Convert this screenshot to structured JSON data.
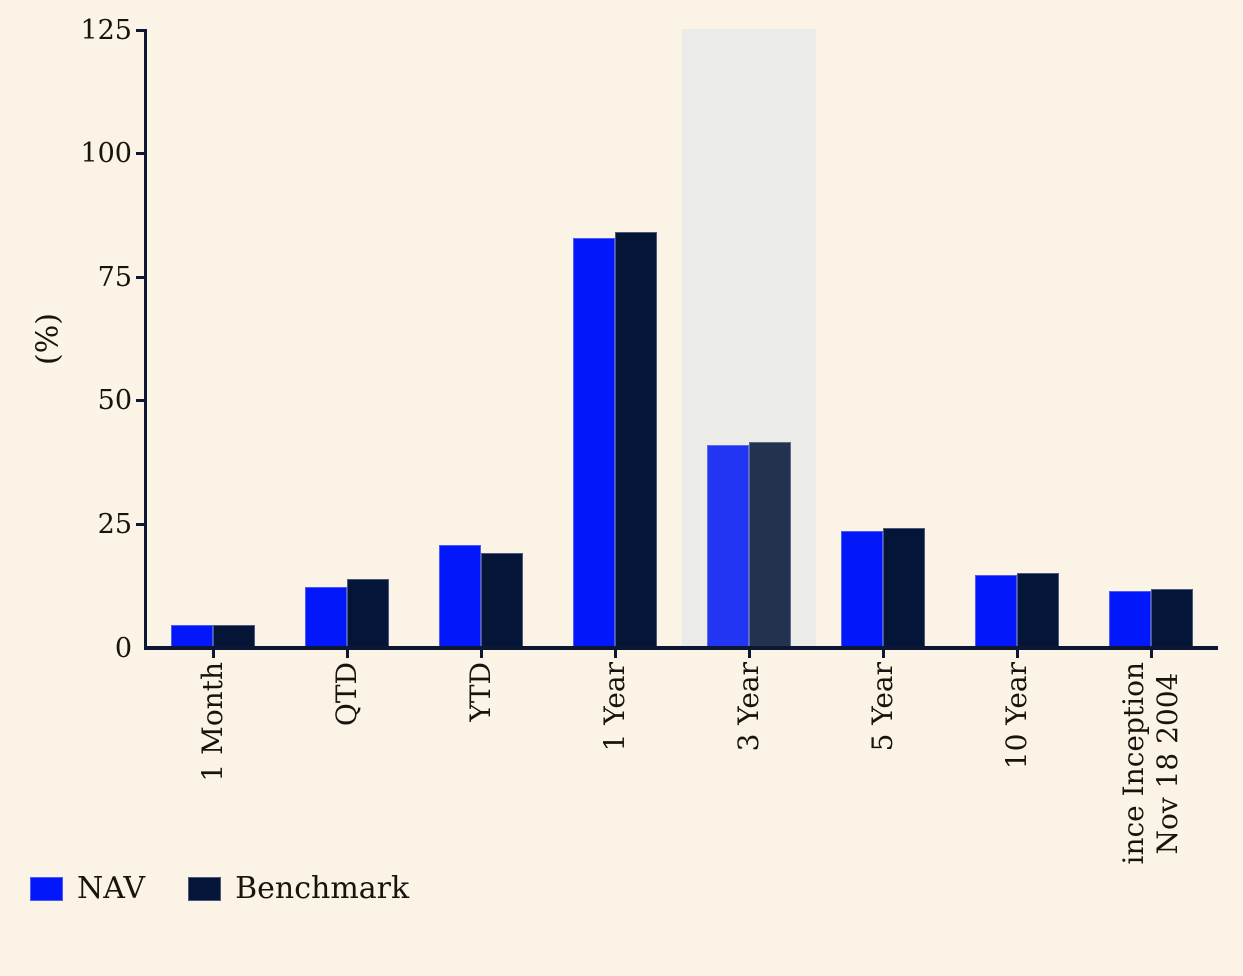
{
  "figure": {
    "background_color": "#faf3e6",
    "text_color": "#17130d",
    "axis_color": "#0b1733",
    "highlight_band_color": "#ebebe7"
  },
  "chart_data": {
    "type": "bar",
    "title": "",
    "xlabel": "",
    "ylabel": "(%)",
    "ylim": [
      0,
      125
    ],
    "yticks": [
      0,
      25,
      50,
      75,
      100,
      125
    ],
    "grid": false,
    "legend_position": "bottom-left",
    "categories": [
      "1 Month",
      "QTD",
      "YTD",
      "1 Year",
      "3 Year",
      "5 Year",
      "10 Year",
      "ince Inception Nov 18 2004"
    ],
    "category_label_lines": [
      [
        "1 Month"
      ],
      [
        "QTD"
      ],
      [
        "YTD"
      ],
      [
        "1 Year"
      ],
      [
        "3 Year"
      ],
      [
        "5 Year"
      ],
      [
        "10 Year"
      ],
      [
        "ince Inception",
        "Nov 18 2004"
      ]
    ],
    "highlighted_category_index": 4,
    "series": [
      {
        "name": "NAV",
        "color": "#0218fb",
        "highlight_color": "#2135f2",
        "values": [
          4.6,
          12.3,
          20.9,
          83.0,
          41.1,
          23.7,
          14.8,
          11.6
        ]
      },
      {
        "name": "Benchmark",
        "color": "#041538",
        "highlight_color": "#23324f",
        "values": [
          4.6,
          14.0,
          19.2,
          84.2,
          41.6,
          24.3,
          15.2,
          12.0
        ]
      }
    ]
  },
  "legend": {
    "items": [
      {
        "label": "NAV",
        "color": "#0218fb"
      },
      {
        "label": "Benchmark",
        "color": "#041538"
      }
    ]
  }
}
